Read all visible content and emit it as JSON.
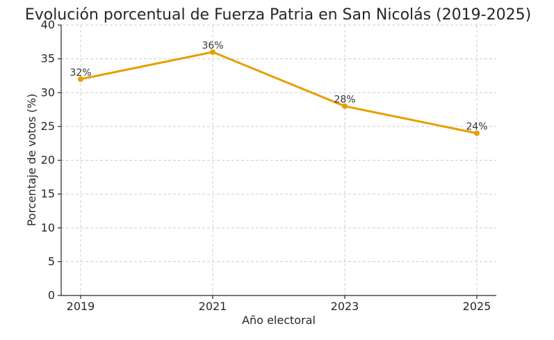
{
  "chart_data": {
    "type": "line",
    "title": "Evolución porcentual de Fuerza Patria en San Nicolás (2019-2025)",
    "xlabel": "Año electoral",
    "ylabel": "Porcentaje de votos (%)",
    "categories": [
      "2019",
      "2021",
      "2023",
      "2025"
    ],
    "series": [
      {
        "values": [
          32,
          36,
          28,
          24
        ],
        "labels": [
          "32%",
          "36%",
          "28%",
          "24%"
        ],
        "color": "#e69f00"
      }
    ],
    "ylim": [
      0,
      40
    ],
    "yticks": [
      0,
      5,
      10,
      15,
      20,
      25,
      30,
      35,
      40
    ],
    "grid": true
  }
}
